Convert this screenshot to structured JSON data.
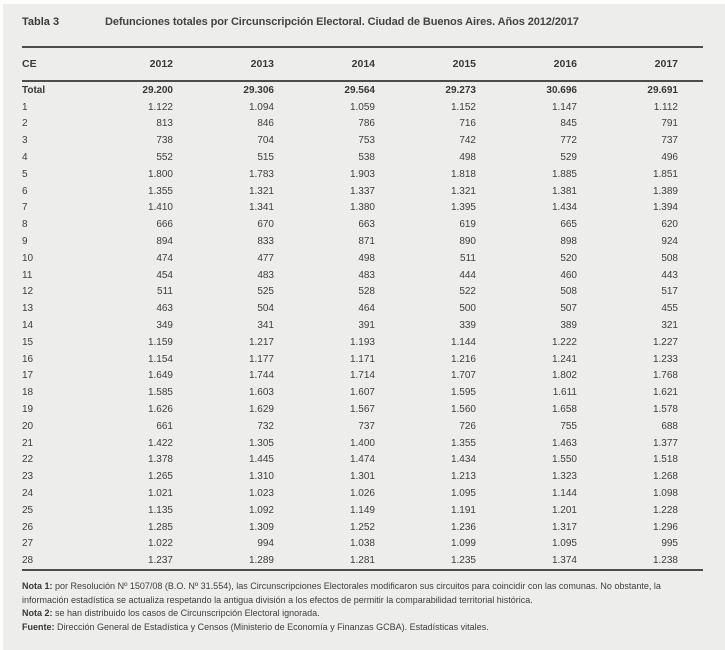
{
  "header": {
    "table_label": "Tabla 3",
    "title": "Defunciones totales por Circunscripción Electoral. Ciudad de Buenos Aires. Años 2012/2017"
  },
  "table": {
    "columns": [
      "CE",
      "2012",
      "2013",
      "2014",
      "2015",
      "2016",
      "2017"
    ],
    "total_row": {
      "label": "Total",
      "values": [
        "29.200",
        "29.306",
        "29.564",
        "29.273",
        "30.696",
        "29.691"
      ]
    },
    "rows": [
      {
        "ce": "1",
        "values": [
          "1.122",
          "1.094",
          "1.059",
          "1.152",
          "1.147",
          "1.112"
        ]
      },
      {
        "ce": "2",
        "values": [
          "813",
          "846",
          "786",
          "716",
          "845",
          "791"
        ]
      },
      {
        "ce": "3",
        "values": [
          "738",
          "704",
          "753",
          "742",
          "772",
          "737"
        ]
      },
      {
        "ce": "4",
        "values": [
          "552",
          "515",
          "538",
          "498",
          "529",
          "496"
        ]
      },
      {
        "ce": "5",
        "values": [
          "1.800",
          "1.783",
          "1.903",
          "1.818",
          "1.885",
          "1.851"
        ]
      },
      {
        "ce": "6",
        "values": [
          "1.355",
          "1.321",
          "1.337",
          "1.321",
          "1.381",
          "1.389"
        ]
      },
      {
        "ce": "7",
        "values": [
          "1.410",
          "1.341",
          "1.380",
          "1.395",
          "1.434",
          "1.394"
        ]
      },
      {
        "ce": "8",
        "values": [
          "666",
          "670",
          "663",
          "619",
          "665",
          "620"
        ]
      },
      {
        "ce": "9",
        "values": [
          "894",
          "833",
          "871",
          "890",
          "898",
          "924"
        ]
      },
      {
        "ce": "10",
        "values": [
          "474",
          "477",
          "498",
          "511",
          "520",
          "508"
        ]
      },
      {
        "ce": "11",
        "values": [
          "454",
          "483",
          "483",
          "444",
          "460",
          "443"
        ]
      },
      {
        "ce": "12",
        "values": [
          "511",
          "525",
          "528",
          "522",
          "508",
          "517"
        ]
      },
      {
        "ce": "13",
        "values": [
          "463",
          "504",
          "464",
          "500",
          "507",
          "455"
        ]
      },
      {
        "ce": "14",
        "values": [
          "349",
          "341",
          "391",
          "339",
          "389",
          "321"
        ]
      },
      {
        "ce": "15",
        "values": [
          "1.159",
          "1.217",
          "1.193",
          "1.144",
          "1.222",
          "1.227"
        ]
      },
      {
        "ce": "16",
        "values": [
          "1.154",
          "1.177",
          "1.171",
          "1.216",
          "1.241",
          "1.233"
        ]
      },
      {
        "ce": "17",
        "values": [
          "1.649",
          "1.744",
          "1.714",
          "1.707",
          "1.802",
          "1.768"
        ]
      },
      {
        "ce": "18",
        "values": [
          "1.585",
          "1.603",
          "1.607",
          "1.595",
          "1.611",
          "1.621"
        ]
      },
      {
        "ce": "19",
        "values": [
          "1.626",
          "1.629",
          "1.567",
          "1.560",
          "1.658",
          "1.578"
        ]
      },
      {
        "ce": "20",
        "values": [
          "661",
          "732",
          "737",
          "726",
          "755",
          "688"
        ]
      },
      {
        "ce": "21",
        "values": [
          "1.422",
          "1.305",
          "1.400",
          "1.355",
          "1.463",
          "1.377"
        ]
      },
      {
        "ce": "22",
        "values": [
          "1.378",
          "1.445",
          "1.474",
          "1.434",
          "1.550",
          "1.518"
        ]
      },
      {
        "ce": "23",
        "values": [
          "1.265",
          "1.310",
          "1.301",
          "1.213",
          "1.323",
          "1.268"
        ]
      },
      {
        "ce": "24",
        "values": [
          "1.021",
          "1.023",
          "1.026",
          "1.095",
          "1.144",
          "1.098"
        ]
      },
      {
        "ce": "25",
        "values": [
          "1.135",
          "1.092",
          "1.149",
          "1.191",
          "1.201",
          "1.228"
        ]
      },
      {
        "ce": "26",
        "values": [
          "1.285",
          "1.309",
          "1.252",
          "1.236",
          "1.317",
          "1.296"
        ]
      },
      {
        "ce": "27",
        "values": [
          "1.022",
          "994",
          "1.038",
          "1.099",
          "1.095",
          "995"
        ]
      },
      {
        "ce": "28",
        "values": [
          "1.237",
          "1.289",
          "1.281",
          "1.235",
          "1.374",
          "1.238"
        ]
      }
    ]
  },
  "notes": [
    {
      "label": "Nota 1:",
      "text": "por Resolución Nº 1507/08 (B.O. Nº 31.554), las Circunscripciones Electorales modificaron sus circuitos para coincidir con las comunas. No obstante, la información estadística se actualiza respetando la antigua división a los efectos de permitir la comparabilidad territorial histórica."
    },
    {
      "label": "Nota 2:",
      "text": "se han distribuido los casos de Circunscripción Electoral ignorada."
    },
    {
      "label": "Fuente:",
      "text": "Dirección General de Estadística y Censos (Ministerio de Economía y Finanzas GCBA). Estadísticas vitales."
    }
  ],
  "colors": {
    "background": "#ededec",
    "text": "#3e3e3e",
    "rule": "#4d4d4d"
  }
}
